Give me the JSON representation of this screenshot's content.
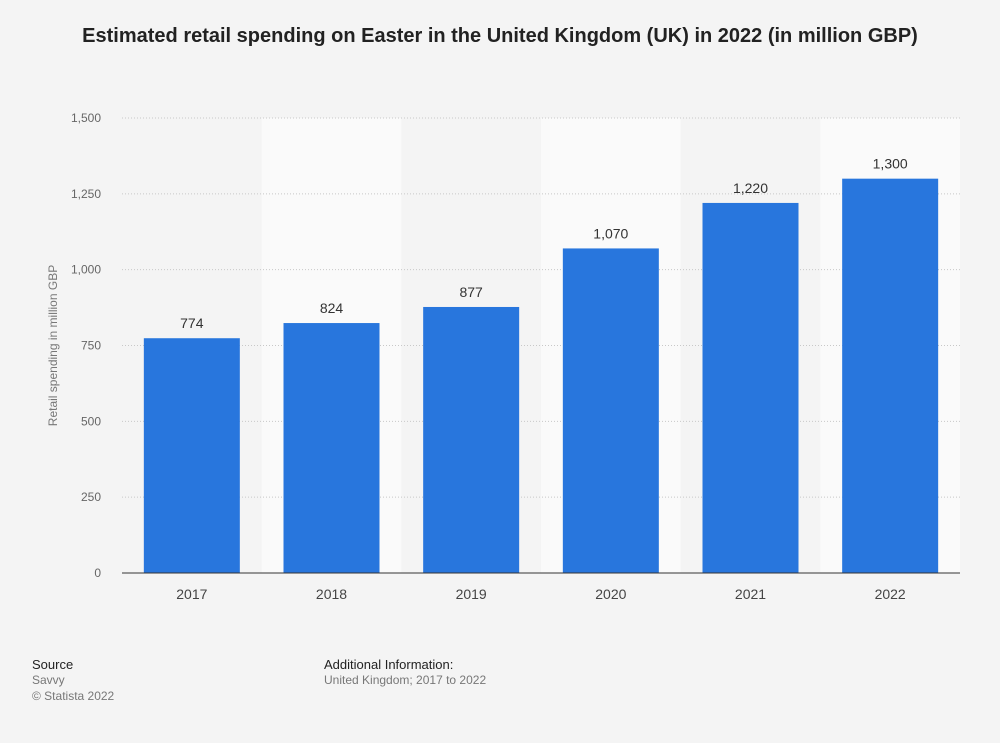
{
  "chart_data": {
    "type": "bar",
    "title": "Estimated retail spending on Easter in the United Kingdom (UK) in 2022 (in million GBP)",
    "xlabel": "",
    "ylabel": "Retail spending in million GBP",
    "categories": [
      "2017",
      "2018",
      "2019",
      "2020",
      "2021",
      "2022"
    ],
    "values": [
      774,
      824,
      877,
      1070,
      1220,
      1300
    ],
    "value_labels": [
      "774",
      "824",
      "877",
      "1,070",
      "1,220",
      "1,300"
    ],
    "ylim": [
      0,
      1500
    ],
    "yticks": [
      0,
      250,
      500,
      750,
      1000,
      1250,
      1500
    ],
    "ytick_labels": [
      "0",
      "250",
      "500",
      "750",
      "1,000",
      "1,250",
      "1,500"
    ],
    "grid": true,
    "bar_color": "#2876dd",
    "alt_band_color": "#fafafa"
  },
  "footer": {
    "source_heading": "Source",
    "source_name": "Savvy",
    "copyright": "© Statista 2022",
    "info_heading": "Additional Information:",
    "info_text": "United Kingdom; 2017 to 2022"
  }
}
